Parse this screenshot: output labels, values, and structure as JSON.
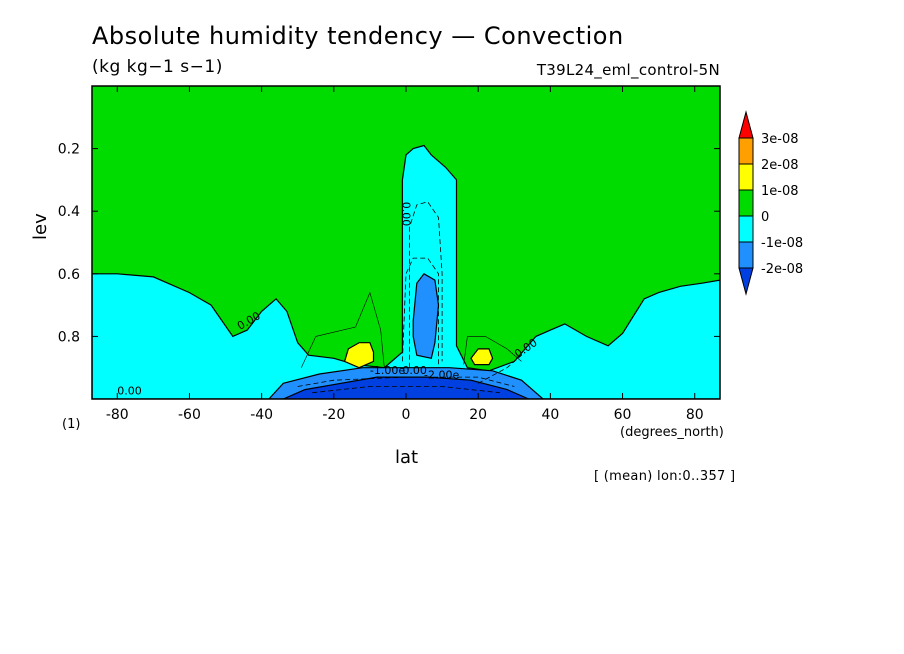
{
  "title": "Absolute humidity tendency — Convection",
  "units": "(kg kg−1 s−1)",
  "experiment": "T39L24_eml_control-5N",
  "panel_label": "(1)",
  "x_units_label": "(degrees_north)",
  "footer": "[ (mean) lon:0..357 ]",
  "chart_data": {
    "type": "heatmap",
    "xlabel": "lat",
    "ylabel": "lev",
    "xlim": [
      -87,
      87
    ],
    "ylim": [
      1.0,
      0.0
    ],
    "x_ticks": [
      -80,
      -60,
      -40,
      -20,
      0,
      20,
      40,
      60,
      80
    ],
    "x_tick_labels": [
      "-80",
      "-60",
      "-40",
      "-20",
      "0",
      "20",
      "40",
      "60",
      "80"
    ],
    "y_ticks": [
      0.2,
      0.4,
      0.6,
      0.8
    ],
    "y_tick_labels": [
      "0.2",
      "0.4",
      "0.6",
      "0.8"
    ],
    "colorbar": {
      "labels": [
        "3e-08",
        "2e-08",
        "1e-08",
        "0",
        "-1e-08",
        "-2e-08"
      ],
      "colors": [
        "#ff0000",
        "#ffa000",
        "#ffff00",
        "#00dc00",
        "#00ffff",
        "#2090ff",
        "#0040e0"
      ]
    },
    "contour_labels": [
      "0.00",
      "0.00",
      "0.00",
      "0.00",
      "0.00",
      "-1.00e",
      "-2.00e"
    ],
    "regions": [
      {
        "level": "0 to 1e-08",
        "color": "#00dc00",
        "desc": "background (upper troposphere and extratropics)"
      },
      {
        "level": "-1e-08 to 0",
        "color": "#00ffff",
        "boundary": [
          [
            -87,
            0.6
          ],
          [
            -80,
            0.6
          ],
          [
            -70,
            0.61
          ],
          [
            -60,
            0.66
          ],
          [
            -54,
            0.7
          ],
          [
            -48,
            0.8
          ],
          [
            -44,
            0.78
          ],
          [
            -40,
            0.72
          ],
          [
            -36,
            0.68
          ],
          [
            -33,
            0.72
          ],
          [
            -30,
            0.82
          ],
          [
            -27,
            0.86
          ],
          [
            -20,
            0.87
          ],
          [
            -14,
            0.89
          ],
          [
            -6,
            0.9
          ],
          [
            -1,
            0.85
          ],
          [
            -1,
            0.3
          ],
          [
            0,
            0.22
          ],
          [
            2,
            0.2
          ],
          [
            5,
            0.19
          ],
          [
            7,
            0.22
          ],
          [
            11,
            0.26
          ],
          [
            14,
            0.3
          ],
          [
            14,
            0.83
          ],
          [
            17,
            0.9
          ],
          [
            23,
            0.91
          ],
          [
            30,
            0.88
          ],
          [
            36,
            0.8
          ],
          [
            40,
            0.78
          ],
          [
            44,
            0.76
          ],
          [
            50,
            0.8
          ],
          [
            56,
            0.83
          ],
          [
            60,
            0.79
          ],
          [
            66,
            0.68
          ],
          [
            70,
            0.66
          ],
          [
            76,
            0.64
          ],
          [
            82,
            0.63
          ],
          [
            87,
            0.62
          ],
          [
            87,
            1.0
          ],
          [
            -87,
            1.0
          ]
        ]
      },
      {
        "level": "-2e-08 to -1e-08",
        "color": "#2090ff",
        "boundary": [
          [
            2,
            0.75
          ],
          [
            3,
            0.63
          ],
          [
            5,
            0.6
          ],
          [
            8,
            0.62
          ],
          [
            9,
            0.7
          ],
          [
            8,
            0.82
          ],
          [
            7,
            0.87
          ],
          [
            3,
            0.86
          ],
          [
            2,
            0.8
          ]
        ]
      },
      {
        "level": "-2e-08 to -1e-08 (near surface)",
        "color": "#2090ff",
        "boundary": [
          [
            -38,
            1.0
          ],
          [
            -34,
            0.95
          ],
          [
            -24,
            0.92
          ],
          [
            -12,
            0.9
          ],
          [
            0,
            0.9
          ],
          [
            12,
            0.9
          ],
          [
            24,
            0.91
          ],
          [
            32,
            0.94
          ],
          [
            38,
            1.0
          ]
        ]
      },
      {
        "level": "< -2e-08",
        "color": "#0040e0",
        "boundary": [
          [
            -34,
            1.0
          ],
          [
            -28,
            0.97
          ],
          [
            -18,
            0.95
          ],
          [
            -8,
            0.93
          ],
          [
            6,
            0.93
          ],
          [
            18,
            0.94
          ],
          [
            28,
            0.97
          ],
          [
            34,
            1.0
          ]
        ]
      },
      {
        "level": "1e-08 to 2e-08",
        "color": "#ffff00",
        "boundary": [
          [
            -17,
            0.88
          ],
          [
            -16,
            0.84
          ],
          [
            -13,
            0.82
          ],
          [
            -10,
            0.82
          ],
          [
            -9,
            0.85
          ],
          [
            -9,
            0.88
          ],
          [
            -13,
            0.9
          ]
        ]
      },
      {
        "level": "1e-08 to 2e-08",
        "color": "#ffff00",
        "boundary": [
          [
            18,
            0.87
          ],
          [
            20,
            0.84
          ],
          [
            23,
            0.84
          ],
          [
            24,
            0.87
          ],
          [
            23,
            0.89
          ],
          [
            19,
            0.89
          ]
        ]
      }
    ]
  }
}
